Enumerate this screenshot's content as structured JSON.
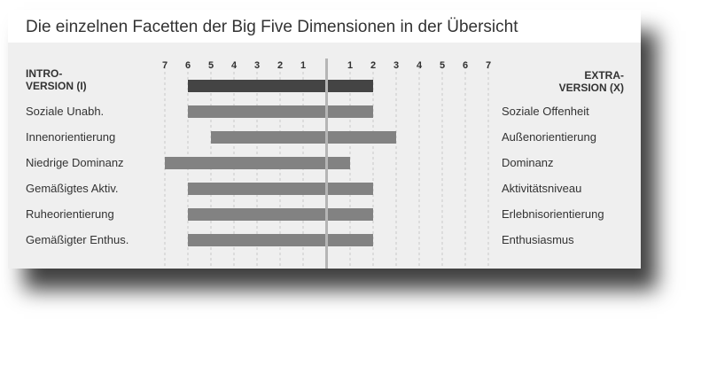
{
  "title": "Die einzelnen Facetten der Big Five Dimensionen in der Übersicht",
  "poles": {
    "left": [
      "INTRO-",
      "VERSION (I)"
    ],
    "right": [
      "EXTRA-",
      "VERSION (X)"
    ]
  },
  "colors": {
    "bar": "#828282",
    "bar_highlight": "#444444",
    "center_line": "#b5b5b5",
    "grid": "#c8c8c8",
    "background": "#efefef"
  },
  "chart_data": {
    "type": "bar",
    "orientation": "horizontal",
    "title": "Die einzelnen Facetten der Big Five Dimensionen in der Übersicht",
    "tick_labels_left": [
      "7",
      "6",
      "5",
      "4",
      "3",
      "2",
      "1"
    ],
    "tick_labels_right": [
      "1",
      "2",
      "3",
      "4",
      "5",
      "6",
      "7"
    ],
    "xlim": [
      -7,
      7
    ],
    "grid": true,
    "rows": [
      {
        "left_label": "",
        "right_label": "",
        "start": -6,
        "end": 2,
        "highlight": true
      },
      {
        "left_label": "Soziale Unabh.",
        "right_label": "Soziale Offenheit",
        "start": -6,
        "end": 2
      },
      {
        "left_label": "Innenorientierung",
        "right_label": "Außenorientierung",
        "start": -5,
        "end": 3
      },
      {
        "left_label": "Niedrige Dominanz",
        "right_label": "Dominanz",
        "start": -7,
        "end": 1
      },
      {
        "left_label": "Gemäßigtes Aktiv.",
        "right_label": "Aktivitätsniveau",
        "start": -6,
        "end": 2
      },
      {
        "left_label": "Ruheorientierung",
        "right_label": "Erlebnisorientierung",
        "start": -6,
        "end": 2
      },
      {
        "left_label": "Gemäßigter Enthus.",
        "right_label": "Enthusiasmus",
        "start": -6,
        "end": 2
      }
    ]
  }
}
